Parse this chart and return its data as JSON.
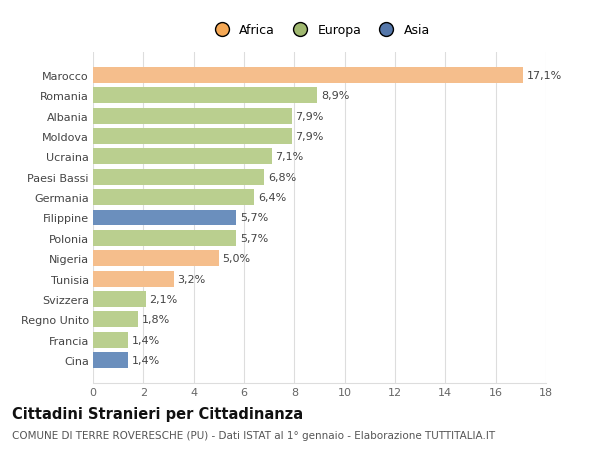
{
  "categories": [
    "Marocco",
    "Romania",
    "Albania",
    "Moldova",
    "Ucraina",
    "Paesi Bassi",
    "Germania",
    "Filippine",
    "Polonia",
    "Nigeria",
    "Tunisia",
    "Svizzera",
    "Regno Unito",
    "Francia",
    "Cina"
  ],
  "values": [
    17.1,
    8.9,
    7.9,
    7.9,
    7.1,
    6.8,
    6.4,
    5.7,
    5.7,
    5.0,
    3.2,
    2.1,
    1.8,
    1.4,
    1.4
  ],
  "labels": [
    "17,1%",
    "8,9%",
    "7,9%",
    "7,9%",
    "7,1%",
    "6,8%",
    "6,4%",
    "5,7%",
    "5,7%",
    "5,0%",
    "3,2%",
    "2,1%",
    "1,8%",
    "1,4%",
    "1,4%"
  ],
  "continents": [
    "Africa",
    "Europa",
    "Europa",
    "Europa",
    "Europa",
    "Europa",
    "Europa",
    "Asia",
    "Europa",
    "Africa",
    "Africa",
    "Europa",
    "Europa",
    "Europa",
    "Asia"
  ],
  "colors": {
    "Africa": "#F5BE8C",
    "Europa": "#BACF8F",
    "Asia": "#6B8FBD"
  },
  "legend_colors": {
    "Africa": "#F5A855",
    "Europa": "#A0B870",
    "Asia": "#5577AA"
  },
  "xlim": [
    0,
    18
  ],
  "xticks": [
    0,
    2,
    4,
    6,
    8,
    10,
    12,
    14,
    16,
    18
  ],
  "title": "Cittadini Stranieri per Cittadinanza",
  "subtitle": "COMUNE DI TERRE ROVERESCHE (PU) - Dati ISTAT al 1° gennaio - Elaborazione TUTTITALIA.IT",
  "background_color": "#ffffff",
  "grid_color": "#dddddd",
  "bar_height": 0.78,
  "label_fontsize": 8,
  "tick_fontsize": 8,
  "title_fontsize": 10.5,
  "subtitle_fontsize": 7.5
}
